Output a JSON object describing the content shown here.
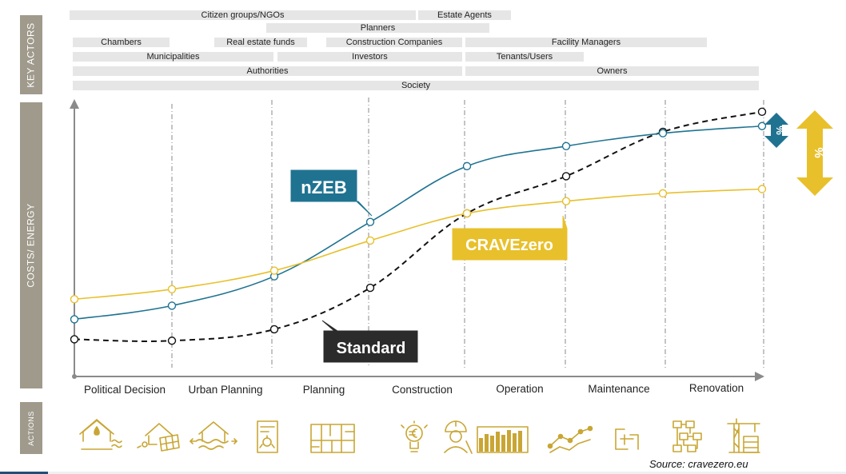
{
  "sections": {
    "key_actors": "KEY ACTORS",
    "costs_energy": "COSTS/ ENERGY",
    "actions": "ACTIONS"
  },
  "actors": [
    {
      "label": "Citizen groups/NGOs"
    },
    {
      "label": "Estate  Agents"
    },
    {
      "label": "Planners"
    },
    {
      "label": "Chambers"
    },
    {
      "label": "Real estate  funds"
    },
    {
      "label": "Construction Companies"
    },
    {
      "label": "Facility Managers"
    },
    {
      "label": "Municipalities"
    },
    {
      "label": "Investors"
    },
    {
      "label": "Tenants/Users"
    },
    {
      "label": "Authorities"
    },
    {
      "label": "Owners"
    },
    {
      "label": "Society"
    }
  ],
  "stages": [
    "Political Decision",
    "Urban Planning",
    "Planning",
    "Construction",
    "Operation",
    "Maintenance",
    "Renovation"
  ],
  "curves": [
    {
      "name": "nZEB",
      "color": "#1f7391",
      "dashed": false,
      "values": [
        4.0,
        4.95,
        7.0,
        10.8,
        14.7,
        16.1,
        17.0,
        17.5
      ]
    },
    {
      "name": "CRAVEzero",
      "color": "#e8c02b",
      "dashed": false,
      "values": [
        5.4,
        6.1,
        7.4,
        9.5,
        11.4,
        12.25,
        12.8,
        13.1
      ]
    },
    {
      "name": "Standard",
      "color": "#111111",
      "dashed": true,
      "values": [
        2.6,
        2.5,
        3.3,
        6.2,
        11.4,
        14.0,
        17.1,
        18.5
      ]
    }
  ],
  "percent_label": "%",
  "colors": {
    "teal": "#1f7391",
    "gold": "#e8c02b",
    "dark": "#2b2b2b",
    "grey": "#9f9a8b"
  },
  "icons": [
    "house-heat-icon",
    "house-solar-icon",
    "house-water-icon",
    "building-plan-icon",
    "floorplan-icon",
    "idea-euro-icon",
    "worker-icon",
    "bar-meter-icon",
    "trend-line-icon",
    "window-frame-icon",
    "flowchart-icon",
    "crane-icon"
  ],
  "source": "Source: cravezero.eu"
}
